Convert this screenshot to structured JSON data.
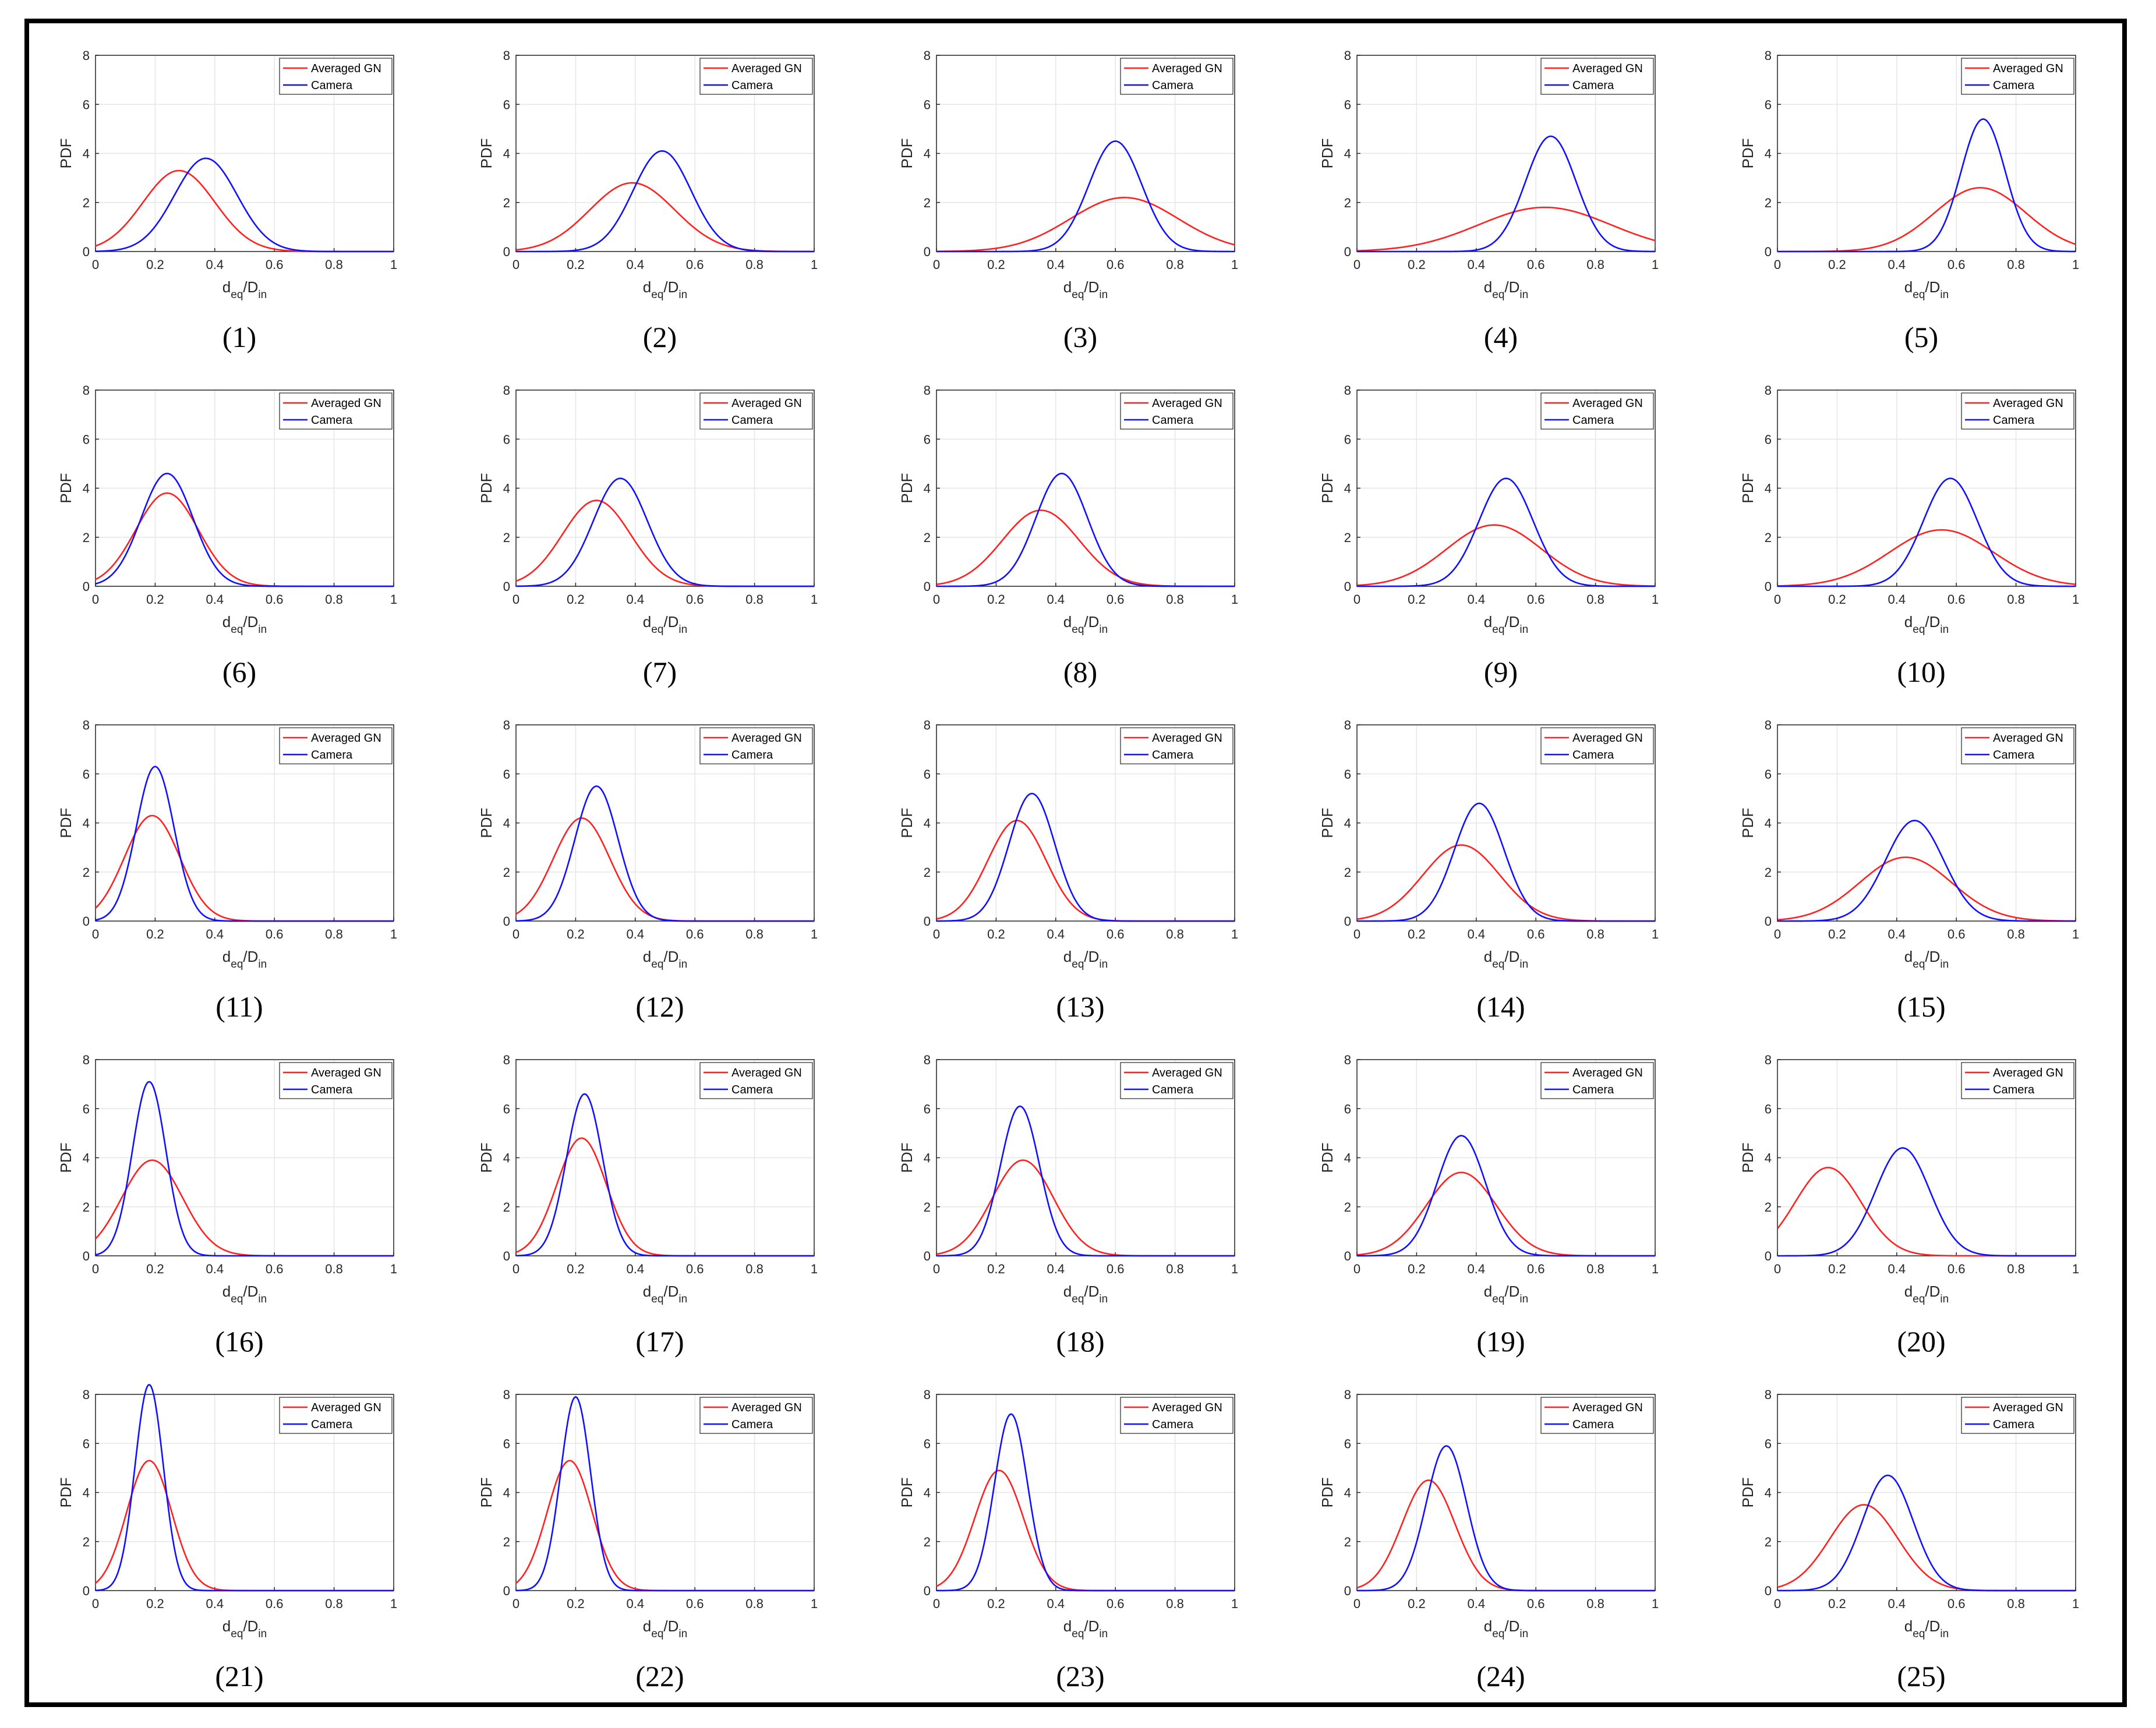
{
  "figure": {
    "legend_labels": [
      "Averaged GN",
      "Camera"
    ],
    "series_colors": {
      "Averaged GN": "#ff2020",
      "Camera": "#1010ff"
    },
    "ylabel": "PDF",
    "xlabel": {
      "d": "d",
      "eq": "eq",
      "slash": "/D",
      "in": "in"
    }
  },
  "chart_data": [
    {
      "label": "(1)",
      "type": "line",
      "xlim": [
        0,
        1
      ],
      "ylim": [
        0,
        8
      ],
      "xticks": [
        "0",
        "0.2",
        "0.4",
        "0.6",
        "0.8",
        "1"
      ],
      "yticks": [
        "0",
        "2",
        "4",
        "6",
        "8"
      ],
      "series": [
        {
          "name": "Averaged GN",
          "mean": 0.28,
          "peak": 3.3
        },
        {
          "name": "Camera",
          "mean": 0.37,
          "peak": 3.8
        }
      ]
    },
    {
      "label": "(2)",
      "type": "line",
      "xlim": [
        0,
        1
      ],
      "ylim": [
        0,
        8
      ],
      "xticks": [
        "0",
        "0.2",
        "0.4",
        "0.6",
        "0.8",
        "1"
      ],
      "yticks": [
        "0",
        "2",
        "4",
        "6",
        "8"
      ],
      "series": [
        {
          "name": "Averaged GN",
          "mean": 0.39,
          "peak": 2.8
        },
        {
          "name": "Camera",
          "mean": 0.49,
          "peak": 4.1
        }
      ]
    },
    {
      "label": "(3)",
      "type": "line",
      "xlim": [
        0,
        1
      ],
      "ylim": [
        0,
        8
      ],
      "xticks": [
        "0",
        "0.2",
        "0.4",
        "0.6",
        "0.8",
        "1"
      ],
      "yticks": [
        "0",
        "2",
        "4",
        "6",
        "8"
      ],
      "series": [
        {
          "name": "Averaged GN",
          "mean": 0.63,
          "peak": 2.2
        },
        {
          "name": "Camera",
          "mean": 0.6,
          "peak": 4.5
        }
      ]
    },
    {
      "label": "(4)",
      "type": "line",
      "xlim": [
        0,
        1
      ],
      "ylim": [
        0,
        8
      ],
      "xticks": [
        "0",
        "0.2",
        "0.4",
        "0.6",
        "0.8",
        "1"
      ],
      "yticks": [
        "0",
        "2",
        "4",
        "6",
        "8"
      ],
      "series": [
        {
          "name": "Averaged GN",
          "mean": 0.63,
          "peak": 1.8
        },
        {
          "name": "Camera",
          "mean": 0.65,
          "peak": 4.7
        }
      ]
    },
    {
      "label": "(5)",
      "type": "line",
      "xlim": [
        0,
        1
      ],
      "ylim": [
        0,
        8
      ],
      "xticks": [
        "0",
        "0.2",
        "0.4",
        "0.6",
        "0.8",
        "1"
      ],
      "yticks": [
        "0",
        "2",
        "4",
        "6",
        "8"
      ],
      "series": [
        {
          "name": "Averaged GN",
          "mean": 0.68,
          "peak": 2.6
        },
        {
          "name": "Camera",
          "mean": 0.69,
          "peak": 5.4
        }
      ]
    },
    {
      "label": "(6)",
      "type": "line",
      "xlim": [
        0,
        1
      ],
      "ylim": [
        0,
        8
      ],
      "xticks": [
        "0",
        "0.2",
        "0.4",
        "0.6",
        "0.8",
        "1"
      ],
      "yticks": [
        "0",
        "2",
        "4",
        "6",
        "8"
      ],
      "series": [
        {
          "name": "Averaged GN",
          "mean": 0.24,
          "peak": 3.8
        },
        {
          "name": "Camera",
          "mean": 0.24,
          "peak": 4.6
        }
      ]
    },
    {
      "label": "(7)",
      "type": "line",
      "xlim": [
        0,
        1
      ],
      "ylim": [
        0,
        8
      ],
      "xticks": [
        "0",
        "0.2",
        "0.4",
        "0.6",
        "0.8",
        "1"
      ],
      "yticks": [
        "0",
        "2",
        "4",
        "6",
        "8"
      ],
      "series": [
        {
          "name": "Averaged GN",
          "mean": 0.27,
          "peak": 3.5
        },
        {
          "name": "Camera",
          "mean": 0.35,
          "peak": 4.4
        }
      ]
    },
    {
      "label": "(8)",
      "type": "line",
      "xlim": [
        0,
        1
      ],
      "ylim": [
        0,
        8
      ],
      "xticks": [
        "0",
        "0.2",
        "0.4",
        "0.6",
        "0.8",
        "1"
      ],
      "yticks": [
        "0",
        "2",
        "4",
        "6",
        "8"
      ],
      "series": [
        {
          "name": "Averaged GN",
          "mean": 0.35,
          "peak": 3.1
        },
        {
          "name": "Camera",
          "mean": 0.42,
          "peak": 4.6
        }
      ]
    },
    {
      "label": "(9)",
      "type": "line",
      "xlim": [
        0,
        1
      ],
      "ylim": [
        0,
        8
      ],
      "xticks": [
        "0",
        "0.2",
        "0.4",
        "0.6",
        "0.8",
        "1"
      ],
      "yticks": [
        "0",
        "2",
        "4",
        "6",
        "8"
      ],
      "series": [
        {
          "name": "Averaged GN",
          "mean": 0.46,
          "peak": 2.5
        },
        {
          "name": "Camera",
          "mean": 0.5,
          "peak": 4.4
        }
      ]
    },
    {
      "label": "(10)",
      "type": "line",
      "xlim": [
        0,
        1
      ],
      "ylim": [
        0,
        8
      ],
      "xticks": [
        "0",
        "0.2",
        "0.4",
        "0.6",
        "0.8",
        "1"
      ],
      "yticks": [
        "0",
        "2",
        "4",
        "6",
        "8"
      ],
      "series": [
        {
          "name": "Averaged GN",
          "mean": 0.55,
          "peak": 2.3
        },
        {
          "name": "Camera",
          "mean": 0.58,
          "peak": 4.4
        }
      ]
    },
    {
      "label": "(11)",
      "type": "line",
      "xlim": [
        0,
        1
      ],
      "ylim": [
        0,
        8
      ],
      "xticks": [
        "0",
        "0.2",
        "0.4",
        "0.6",
        "0.8",
        "1"
      ],
      "yticks": [
        "0",
        "2",
        "4",
        "6",
        "8"
      ],
      "series": [
        {
          "name": "Averaged GN",
          "mean": 0.19,
          "peak": 4.3
        },
        {
          "name": "Camera",
          "mean": 0.2,
          "peak": 6.3
        }
      ]
    },
    {
      "label": "(12)",
      "type": "line",
      "xlim": [
        0,
        1
      ],
      "ylim": [
        0,
        8
      ],
      "xticks": [
        "0",
        "0.2",
        "0.4",
        "0.6",
        "0.8",
        "1"
      ],
      "yticks": [
        "0",
        "2",
        "4",
        "6",
        "8"
      ],
      "series": [
        {
          "name": "Averaged GN",
          "mean": 0.22,
          "peak": 4.2
        },
        {
          "name": "Camera",
          "mean": 0.27,
          "peak": 5.5
        }
      ]
    },
    {
      "label": "(13)",
      "type": "line",
      "xlim": [
        0,
        1
      ],
      "ylim": [
        0,
        8
      ],
      "xticks": [
        "0",
        "0.2",
        "0.4",
        "0.6",
        "0.8",
        "1"
      ],
      "yticks": [
        "0",
        "2",
        "4",
        "6",
        "8"
      ],
      "series": [
        {
          "name": "Averaged GN",
          "mean": 0.27,
          "peak": 4.1
        },
        {
          "name": "Camera",
          "mean": 0.32,
          "peak": 5.2
        }
      ]
    },
    {
      "label": "(14)",
      "type": "line",
      "xlim": [
        0,
        1
      ],
      "ylim": [
        0,
        8
      ],
      "xticks": [
        "0",
        "0.2",
        "0.4",
        "0.6",
        "0.8",
        "1"
      ],
      "yticks": [
        "0",
        "2",
        "4",
        "6",
        "8"
      ],
      "series": [
        {
          "name": "Averaged GN",
          "mean": 0.35,
          "peak": 3.1
        },
        {
          "name": "Camera",
          "mean": 0.41,
          "peak": 4.8
        }
      ]
    },
    {
      "label": "(15)",
      "type": "line",
      "xlim": [
        0,
        1
      ],
      "ylim": [
        0,
        8
      ],
      "xticks": [
        "0",
        "0.2",
        "0.4",
        "0.6",
        "0.8",
        "1"
      ],
      "yticks": [
        "0",
        "2",
        "4",
        "6",
        "8"
      ],
      "series": [
        {
          "name": "Averaged GN",
          "mean": 0.43,
          "peak": 2.6
        },
        {
          "name": "Camera",
          "mean": 0.46,
          "peak": 4.1
        }
      ]
    },
    {
      "label": "(16)",
      "type": "line",
      "xlim": [
        0,
        1
      ],
      "ylim": [
        0,
        8
      ],
      "xticks": [
        "0",
        "0.2",
        "0.4",
        "0.6",
        "0.8",
        "1"
      ],
      "yticks": [
        "0",
        "2",
        "4",
        "6",
        "8"
      ],
      "series": [
        {
          "name": "Averaged GN",
          "mean": 0.19,
          "peak": 3.9
        },
        {
          "name": "Camera",
          "mean": 0.18,
          "peak": 7.1
        }
      ]
    },
    {
      "label": "(17)",
      "type": "line",
      "xlim": [
        0,
        1
      ],
      "ylim": [
        0,
        8
      ],
      "xticks": [
        "0",
        "0.2",
        "0.4",
        "0.6",
        "0.8",
        "1"
      ],
      "yticks": [
        "0",
        "2",
        "4",
        "6",
        "8"
      ],
      "series": [
        {
          "name": "Averaged GN",
          "mean": 0.22,
          "peak": 4.8
        },
        {
          "name": "Camera",
          "mean": 0.23,
          "peak": 6.6
        }
      ]
    },
    {
      "label": "(18)",
      "type": "line",
      "xlim": [
        0,
        1
      ],
      "ylim": [
        0,
        8
      ],
      "xticks": [
        "0",
        "0.2",
        "0.4",
        "0.6",
        "0.8",
        "1"
      ],
      "yticks": [
        "0",
        "2",
        "4",
        "6",
        "8"
      ],
      "series": [
        {
          "name": "Averaged GN",
          "mean": 0.29,
          "peak": 3.9
        },
        {
          "name": "Camera",
          "mean": 0.28,
          "peak": 6.1
        }
      ]
    },
    {
      "label": "(19)",
      "type": "line",
      "xlim": [
        0,
        1
      ],
      "ylim": [
        0,
        8
      ],
      "xticks": [
        "0",
        "0.2",
        "0.4",
        "0.6",
        "0.8",
        "1"
      ],
      "yticks": [
        "0",
        "2",
        "4",
        "6",
        "8"
      ],
      "series": [
        {
          "name": "Averaged GN",
          "mean": 0.35,
          "peak": 3.4
        },
        {
          "name": "Camera",
          "mean": 0.35,
          "peak": 4.9
        }
      ]
    },
    {
      "label": "(20)",
      "type": "line",
      "xlim": [
        0,
        1
      ],
      "ylim": [
        0,
        8
      ],
      "xticks": [
        "0",
        "0.2",
        "0.4",
        "0.6",
        "0.8",
        "1"
      ],
      "yticks": [
        "0",
        "2",
        "4",
        "6",
        "8"
      ],
      "series": [
        {
          "name": "Averaged GN",
          "mean": 0.17,
          "peak": 3.6
        },
        {
          "name": "Camera",
          "mean": 0.42,
          "peak": 4.4
        }
      ]
    },
    {
      "label": "(21)",
      "type": "line",
      "xlim": [
        0,
        1
      ],
      "ylim": [
        0,
        8
      ],
      "xticks": [
        "0",
        "0.2",
        "0.4",
        "0.6",
        "0.8",
        "1"
      ],
      "yticks": [
        "0",
        "2",
        "4",
        "6",
        "8"
      ],
      "series": [
        {
          "name": "Averaged GN",
          "mean": 0.18,
          "peak": 5.3
        },
        {
          "name": "Camera",
          "mean": 0.18,
          "peak": 8.4
        }
      ]
    },
    {
      "label": "(22)",
      "type": "line",
      "xlim": [
        0,
        1
      ],
      "ylim": [
        0,
        8
      ],
      "xticks": [
        "0",
        "0.2",
        "0.4",
        "0.6",
        "0.8",
        "1"
      ],
      "yticks": [
        "0",
        "2",
        "4",
        "6",
        "8"
      ],
      "series": [
        {
          "name": "Averaged GN",
          "mean": 0.18,
          "peak": 5.3
        },
        {
          "name": "Camera",
          "mean": 0.2,
          "peak": 7.9
        }
      ]
    },
    {
      "label": "(23)",
      "type": "line",
      "xlim": [
        0,
        1
      ],
      "ylim": [
        0,
        8
      ],
      "xticks": [
        "0",
        "0.2",
        "0.4",
        "0.6",
        "0.8",
        "1"
      ],
      "yticks": [
        "0",
        "2",
        "4",
        "6",
        "8"
      ],
      "series": [
        {
          "name": "Averaged GN",
          "mean": 0.21,
          "peak": 4.9
        },
        {
          "name": "Camera",
          "mean": 0.25,
          "peak": 7.2
        }
      ]
    },
    {
      "label": "(24)",
      "type": "line",
      "xlim": [
        0,
        1
      ],
      "ylim": [
        0,
        8
      ],
      "xticks": [
        "0",
        "0.2",
        "0.4",
        "0.6",
        "0.8",
        "1"
      ],
      "yticks": [
        "0",
        "2",
        "4",
        "6",
        "8"
      ],
      "series": [
        {
          "name": "Averaged GN",
          "mean": 0.24,
          "peak": 4.5
        },
        {
          "name": "Camera",
          "mean": 0.3,
          "peak": 5.9
        }
      ]
    },
    {
      "label": "(25)",
      "type": "line",
      "xlim": [
        0,
        1
      ],
      "ylim": [
        0,
        8
      ],
      "xticks": [
        "0",
        "0.2",
        "0.4",
        "0.6",
        "0.8",
        "1"
      ],
      "yticks": [
        "0",
        "2",
        "4",
        "6",
        "8"
      ],
      "series": [
        {
          "name": "Averaged GN",
          "mean": 0.29,
          "peak": 3.5
        },
        {
          "name": "Camera",
          "mean": 0.37,
          "peak": 4.7
        }
      ]
    }
  ]
}
